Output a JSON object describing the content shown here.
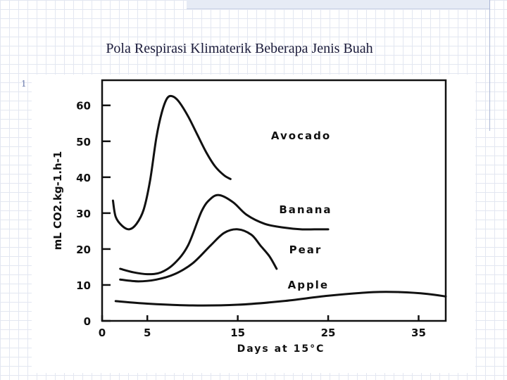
{
  "slide": {
    "title": "Pola Respirasi Klimaterik Beberapa Jenis Buah",
    "side_mark": "1"
  },
  "chart_data": {
    "type": "line",
    "title": "",
    "xlabel": "Days at 15°C",
    "ylabel": "mL CO2.kg-1.h-1",
    "x_ticks": [
      0,
      5,
      15,
      25,
      35
    ],
    "y_ticks": [
      0,
      10,
      20,
      30,
      40,
      50,
      60
    ],
    "xlim": [
      0,
      38
    ],
    "ylim": [
      0,
      67
    ],
    "grid": false,
    "legend": "inline labels",
    "series": [
      {
        "name": "Avocado",
        "x": [
          1.2,
          1.5,
          2.2,
          3.0,
          3.8,
          4.6,
          5.3,
          6.0,
          6.6,
          7.2,
          7.8,
          8.5,
          9.5,
          10.5,
          11.5,
          12.5,
          13.5,
          14.2
        ],
        "y": [
          33.5,
          29.0,
          26.5,
          25.5,
          27.0,
          31.0,
          39.0,
          51.0,
          58.0,
          62.0,
          62.5,
          61.0,
          57.0,
          52.0,
          47.0,
          43.0,
          40.5,
          39.5
        ]
      },
      {
        "name": "Banana",
        "x": [
          2.0,
          3.5,
          5.0,
          6.5,
          8.0,
          9.5,
          11.0,
          12.0,
          13.0,
          14.5,
          16.0,
          18.0,
          20.0,
          22.0,
          24.0,
          25.0
        ],
        "y": [
          14.5,
          13.5,
          13.0,
          13.5,
          16.0,
          21.0,
          30.5,
          34.0,
          35.0,
          33.0,
          29.5,
          27.0,
          26.0,
          25.5,
          25.5,
          25.5
        ]
      },
      {
        "name": "Pear",
        "x": [
          2.0,
          4.0,
          6.0,
          8.0,
          10.0,
          12.0,
          13.5,
          15.0,
          16.5,
          17.5,
          18.5,
          19.3
        ],
        "y": [
          11.5,
          11.0,
          11.5,
          13.0,
          16.0,
          21.0,
          24.5,
          25.5,
          24.0,
          21.0,
          18.0,
          14.5
        ]
      },
      {
        "name": "Apple",
        "x": [
          1.5,
          5.0,
          10.0,
          15.0,
          20.0,
          25.0,
          30.0,
          33.0,
          36.0,
          38.0
        ],
        "y": [
          5.5,
          4.8,
          4.3,
          4.5,
          5.5,
          7.0,
          8.0,
          8.0,
          7.5,
          6.8
        ]
      }
    ]
  }
}
